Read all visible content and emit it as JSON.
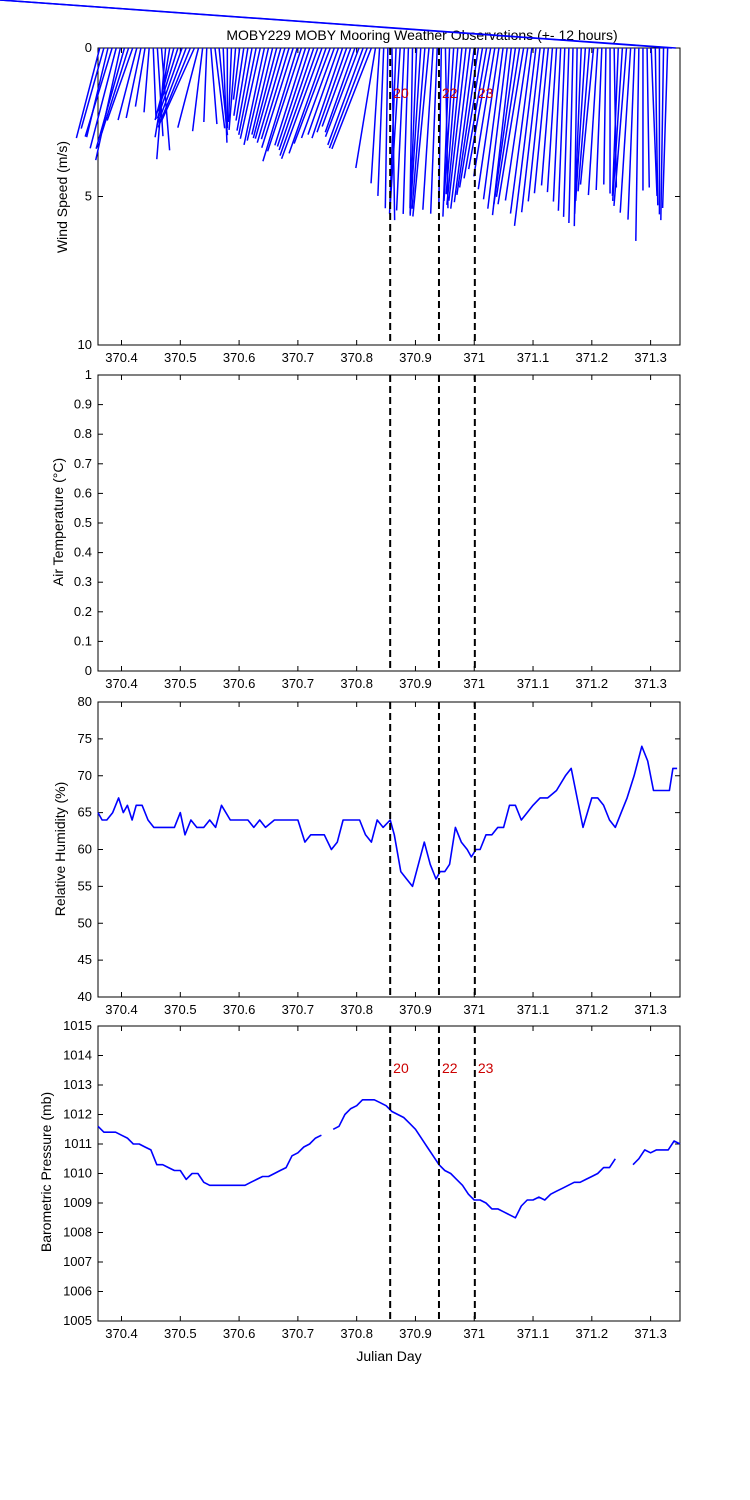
{
  "figure_title": "MOBY229 MOBY Mooring Weather Observations (+- 12 hours)",
  "colors": {
    "series": "#0000ff",
    "marker_label": "#cc0000",
    "axes": "#000000"
  },
  "chart_data": [
    {
      "type": "line",
      "subtype": "wind-stick",
      "title": "MOBY229 MOBY Mooring Weather Observations (+- 12 hours)",
      "xlabel": "",
      "ylabel": "Wind Speed (m/s)",
      "xlim": [
        370.36,
        371.35
      ],
      "ylim": [
        0,
        10
      ],
      "y_reversed": true,
      "xticks": [
        370.4,
        370.5,
        370.6,
        370.7,
        370.8,
        370.9,
        371,
        371.1,
        371.2,
        371.3
      ],
      "xtick_labels": [
        "370.4",
        "370.5",
        "370.6",
        "370.7",
        "370.8",
        "370.9",
        "371",
        "371.1",
        "371.2",
        "371.3"
      ],
      "yticks": [
        0,
        5,
        10
      ],
      "ytick_labels": [
        "0",
        "5",
        "10"
      ],
      "event_lines": [
        370.857,
        370.94,
        371.001
      ],
      "event_labels": [
        "20",
        "22",
        "23"
      ],
      "series": [
        {
          "x": [
            370.363,
            370.37,
            370.377,
            370.384,
            370.391,
            370.398,
            370.405,
            370.412,
            370.419,
            370.426,
            370.433,
            370.44,
            370.447,
            370.454,
            370.461,
            370.468,
            370.475,
            370.482,
            370.489,
            370.496,
            370.503,
            370.51,
            370.517,
            370.524,
            370.531,
            370.538,
            370.545,
            370.552,
            370.559,
            370.566,
            370.573,
            370.58,
            370.587,
            370.594,
            370.601,
            370.608,
            370.615,
            370.622,
            370.629,
            370.636,
            370.643,
            370.65,
            370.657,
            370.664,
            370.671,
            370.678,
            370.685,
            370.692,
            370.699,
            370.706,
            370.713,
            370.72,
            370.727,
            370.734,
            370.741,
            370.748,
            370.755,
            370.762,
            370.769,
            370.776,
            370.783,
            370.79,
            370.797,
            370.804,
            370.811,
            370.818,
            370.825,
            370.832,
            370.839,
            370.846,
            370.853,
            370.86,
            370.867,
            370.874,
            370.881,
            370.888,
            370.895,
            370.902,
            370.909,
            370.916,
            370.923,
            370.93,
            370.937,
            370.944,
            370.951,
            370.958,
            370.965,
            370.972,
            370.979,
            370.986,
            370.993,
            371.0,
            371.007,
            371.014,
            371.021,
            371.028,
            371.035,
            371.042,
            371.049,
            371.056,
            371.063,
            371.07,
            371.077,
            371.084,
            371.091,
            371.098,
            371.105,
            371.112,
            371.119,
            371.126,
            371.133,
            371.14,
            371.147,
            371.154,
            371.161,
            371.168,
            371.175,
            371.182,
            371.189,
            371.196,
            371.203,
            371.21,
            371.217,
            371.224,
            371.231,
            371.238,
            371.245,
            371.252,
            371.259,
            371.266,
            371.273,
            371.28,
            371.287,
            371.294,
            371.301,
            371.308,
            371.315,
            371.322,
            371.329,
            371.336,
            371.343
          ],
          "speed": [
            3.5,
            3.2,
            3.4,
            3.6,
            3.9,
            4.2,
            4.0,
            3.5,
            3.1,
            2.8,
            2.6,
            2.1,
            2.2,
            2.4,
            3.0,
            3.5,
            3.8,
            3.2,
            2.8,
            2.6,
            3.0,
            3.4,
            3.6,
            3.5,
            3.1,
            2.9,
            2.5,
            2.6,
            2.8,
            3.0,
            3.2,
            2.7,
            2.5,
            2.8,
            1.8,
            2.4,
            2.6,
            3.0,
            3.2,
            3.4,
            3.6,
            3.5,
            3.3,
            3.5,
            3.6,
            3.8,
            3.7,
            4.1,
            4.6,
            4.3,
            4.0,
            4.1,
            4.3,
            4.6,
            4.8,
            4.5,
            4.2,
            3.9,
            3.7,
            3.8,
            3.6,
            3.4,
            3.6,
            3.9,
            4.2,
            4.4,
            4.5,
            4.3,
            4.6,
            5.0,
            5.4,
            5.8,
            5.6,
            5.3,
            5.5,
            5.6,
            5.4,
            5.6,
            5.7,
            5.5,
            5.8,
            5.5,
            5.6,
            5.3,
            5.4,
            5.7,
            5.2,
            5.0,
            5.4,
            5.3,
            5.6,
            5.4,
            5.2,
            5.0,
            4.7,
            4.4,
            4.6,
            5.0,
            5.3,
            5.6,
            5.8,
            5.5,
            5.3,
            5.6,
            5.4,
            5.8,
            6.2,
            5.7,
            5.3,
            5.0,
            4.7,
            4.9,
            5.2,
            5.5,
            5.7,
            5.9,
            6.0,
            5.6,
            5.2,
            4.9,
            4.7,
            5.0,
            4.8,
            4.6,
            4.9,
            4.7,
            5.0,
            5.2,
            5.4,
            5.6,
            5.8,
            6.5,
            4.8,
            4.7,
            5.0,
            5.3,
            5.6,
            5.8,
            5.4
          ],
          "dir_deg": [
            330,
            328,
            332,
            326,
            330,
            334,
            328,
            325,
            322,
            330,
            335,
            340,
            350,
            5,
            8,
            10,
            350,
            340,
            330,
            325,
            322,
            320,
            318,
            315,
            330,
            345,
            355,
            10,
            15,
            12,
            5,
            0,
            355,
            350,
            345,
            342,
            340,
            338,
            336,
            334,
            335,
            333,
            332,
            330,
            328,
            327,
            326,
            325,
            326,
            324,
            325,
            324,
            323,
            322,
            321,
            322,
            320,
            321,
            322,
            323,
            322,
            321,
            322,
            320,
            321,
            320,
            319,
            340,
            352,
            355,
            358,
            2,
            355,
            352,
            354,
            356,
            358,
            355,
            352,
            350,
            348,
            352,
            355,
            358,
            2,
            355,
            352,
            350,
            348,
            346,
            345,
            344,
            342,
            340,
            339,
            338,
            340,
            342,
            344,
            345,
            346,
            343,
            341,
            340,
            342,
            344,
            345,
            346,
            347,
            348,
            350,
            352,
            354,
            355,
            356,
            357,
            358,
            355,
            352,
            350,
            348,
            352,
            355,
            358,
            0,
            2,
            355,
            352,
            350,
            352,
            355,
            358,
            0,
            2,
            5,
            2,
            0,
            358,
            356,
            355,
            357
          ]
        }
      ]
    },
    {
      "type": "line",
      "title": "",
      "xlabel": "",
      "ylabel": "Air Temperature (°C)",
      "xlim": [
        370.36,
        371.35
      ],
      "ylim": [
        0,
        1
      ],
      "xticks": [
        370.4,
        370.5,
        370.6,
        370.7,
        370.8,
        370.9,
        371,
        371.1,
        371.2,
        371.3
      ],
      "xtick_labels": [
        "370.4",
        "370.5",
        "370.6",
        "370.7",
        "370.8",
        "370.9",
        "371",
        "371.1",
        "371.2",
        "371.3"
      ],
      "yticks": [
        0,
        0.1,
        0.2,
        0.3,
        0.4,
        0.5,
        0.6,
        0.7,
        0.8,
        0.9,
        1
      ],
      "ytick_labels": [
        "0",
        "0.1",
        "0.2",
        "0.3",
        "0.4",
        "0.5",
        "0.6",
        "0.7",
        "0.8",
        "0.9",
        "1"
      ],
      "event_lines": [
        370.857,
        370.94,
        371.001
      ],
      "series": []
    },
    {
      "type": "line",
      "title": "",
      "xlabel": "",
      "ylabel": "Relative Humidity (%)",
      "xlim": [
        370.36,
        371.35
      ],
      "ylim": [
        40,
        80
      ],
      "xticks": [
        370.4,
        370.5,
        370.6,
        370.7,
        370.8,
        370.9,
        371,
        371.1,
        371.2,
        371.3
      ],
      "xtick_labels": [
        "370.4",
        "370.5",
        "370.6",
        "370.7",
        "370.8",
        "370.9",
        "371",
        "371.1",
        "371.2",
        "371.3"
      ],
      "yticks": [
        40,
        45,
        50,
        55,
        60,
        65,
        70,
        75,
        80
      ],
      "ytick_labels": [
        "40",
        "45",
        "50",
        "55",
        "60",
        "65",
        "70",
        "75",
        "80"
      ],
      "event_lines": [
        370.857,
        370.94,
        371.001
      ],
      "series": [
        {
          "x": [
            370.36,
            370.367,
            370.375,
            370.385,
            370.395,
            370.403,
            370.41,
            370.418,
            370.425,
            370.435,
            370.445,
            370.455,
            370.47,
            370.49,
            370.5,
            370.508,
            370.518,
            370.528,
            370.54,
            370.55,
            370.56,
            370.57,
            370.585,
            370.6,
            370.615,
            370.625,
            370.635,
            370.645,
            370.66,
            370.675,
            370.69,
            370.7,
            370.712,
            370.722,
            370.73,
            370.735,
            370.745,
            370.757,
            370.767,
            370.777,
            370.79,
            370.805,
            370.815,
            370.825,
            370.835,
            370.845,
            370.857,
            370.864,
            370.875,
            370.885,
            370.895,
            370.905,
            370.915,
            370.925,
            370.935,
            370.942,
            370.95,
            370.958,
            370.968,
            370.978,
            370.988,
            370.995,
            371.003,
            371.01,
            371.02,
            371.03,
            371.04,
            371.05,
            371.06,
            371.07,
            371.08,
            371.09,
            371.1,
            371.112,
            371.125,
            371.14,
            371.155,
            371.165,
            371.175,
            371.185,
            371.2,
            371.21,
            371.22,
            371.23,
            371.24,
            371.25,
            371.26,
            371.272,
            371.285,
            371.295,
            371.305,
            371.315,
            371.325,
            371.332,
            371.338,
            371.345
          ],
          "y": [
            65,
            64,
            64,
            65,
            67,
            65,
            66,
            64,
            66,
            66,
            64,
            63,
            63,
            63,
            65,
            62,
            64,
            63,
            63,
            64,
            63,
            66,
            64,
            64,
            64,
            63,
            64,
            63,
            64,
            64,
            64,
            64,
            61,
            62,
            62,
            62,
            62,
            60,
            61,
            64,
            64,
            64,
            62,
            61,
            64,
            63,
            64,
            62,
            57,
            56,
            55,
            58,
            61,
            58,
            56,
            57,
            57,
            58,
            63,
            61,
            60,
            59,
            60,
            60,
            62,
            62,
            63,
            63,
            66,
            66,
            64,
            65,
            66,
            67,
            67,
            68,
            70,
            71,
            67,
            63,
            67,
            67,
            66,
            64,
            63,
            65,
            67,
            70,
            74,
            72,
            68,
            68,
            68,
            68,
            71,
            71
          ],
          "gaps_after_index": []
        }
      ]
    },
    {
      "type": "line",
      "title": "",
      "xlabel": "Julian Day",
      "ylabel": "Barometric Pressure (mb)",
      "xlim": [
        370.36,
        371.35
      ],
      "ylim": [
        1005,
        1015
      ],
      "xticks": [
        370.4,
        370.5,
        370.6,
        370.7,
        370.8,
        370.9,
        371,
        371.1,
        371.2,
        371.3
      ],
      "xtick_labels": [
        "370.4",
        "370.5",
        "370.6",
        "370.7",
        "370.8",
        "370.9",
        "371",
        "371.1",
        "371.2",
        "371.3"
      ],
      "yticks": [
        1005,
        1006,
        1007,
        1008,
        1009,
        1010,
        1011,
        1012,
        1013,
        1014,
        1015
      ],
      "ytick_labels": [
        "1005",
        "1006",
        "1007",
        "1008",
        "1009",
        "1010",
        "1011",
        "1012",
        "1013",
        "1014",
        "1015"
      ],
      "event_lines": [
        370.857,
        370.94,
        371.001
      ],
      "event_labels": [
        "20",
        "22",
        "23"
      ],
      "event_label_value": 1013.4,
      "series": [
        {
          "x": [
            370.36,
            370.37,
            370.38,
            370.39,
            370.4,
            370.41,
            370.42,
            370.43,
            370.44,
            370.45,
            370.46,
            370.47,
            370.48,
            370.49,
            370.5,
            370.51,
            370.52,
            370.53,
            370.54,
            370.55,
            370.56,
            370.57,
            370.58,
            370.59,
            370.6,
            370.61,
            370.62,
            370.63,
            370.64,
            370.65,
            370.66,
            370.67,
            370.68,
            370.69,
            370.7,
            370.71,
            370.72,
            370.73,
            370.74,
            370.75,
            370.76,
            370.77,
            370.78,
            370.79,
            370.8,
            370.81,
            370.82,
            370.83,
            370.84,
            370.85,
            370.86,
            370.87,
            370.88,
            370.89,
            370.9,
            370.91,
            370.92,
            370.93,
            370.94,
            370.95,
            370.96,
            370.97,
            370.98,
            370.99,
            371.0,
            371.01,
            371.02,
            371.03,
            371.04,
            371.05,
            371.06,
            371.07,
            371.08,
            371.09,
            371.1,
            371.11,
            371.12,
            371.13,
            371.14,
            371.15,
            371.16,
            371.17,
            371.18,
            371.19,
            371.2,
            371.21,
            371.22,
            371.23,
            371.24,
            371.25,
            371.26,
            371.27,
            371.28,
            371.29,
            371.3,
            371.31,
            371.32,
            371.33,
            371.34,
            371.35
          ],
          "y": [
            1011.6,
            1011.4,
            1011.4,
            1011.4,
            1011.3,
            1011.2,
            1011.0,
            1011.0,
            1010.9,
            1010.8,
            1010.3,
            1010.3,
            1010.2,
            1010.1,
            1010.1,
            1009.8,
            1010.0,
            1010.0,
            1009.7,
            1009.6,
            1009.6,
            1009.6,
            1009.6,
            1009.6,
            1009.6,
            1009.6,
            1009.7,
            1009.8,
            1009.9,
            1009.9,
            1010.0,
            1010.1,
            1010.2,
            1010.6,
            1010.7,
            1010.9,
            1011.0,
            1011.2,
            1011.3,
            null,
            1011.5,
            1011.6,
            1012.0,
            1012.2,
            1012.3,
            1012.5,
            1012.5,
            1012.5,
            1012.4,
            1012.3,
            1012.1,
            1012.0,
            1011.9,
            1011.7,
            1011.5,
            1011.2,
            1010.9,
            1010.6,
            1010.3,
            1010.1,
            1010.0,
            1009.8,
            1009.6,
            1009.3,
            1009.1,
            1009.1,
            1009.0,
            1008.8,
            1008.8,
            1008.7,
            1008.6,
            1008.5,
            1008.9,
            1009.1,
            1009.1,
            1009.2,
            1009.1,
            1009.3,
            1009.4,
            1009.5,
            1009.6,
            1009.7,
            1009.7,
            1009.8,
            1009.9,
            1010.0,
            1010.2,
            1010.2,
            1010.5,
            null,
            null,
            1010.3,
            1010.5,
            1010.8,
            1010.7,
            1010.8,
            1010.8,
            1010.8,
            1011.1,
            1011.0
          ]
        }
      ]
    }
  ]
}
